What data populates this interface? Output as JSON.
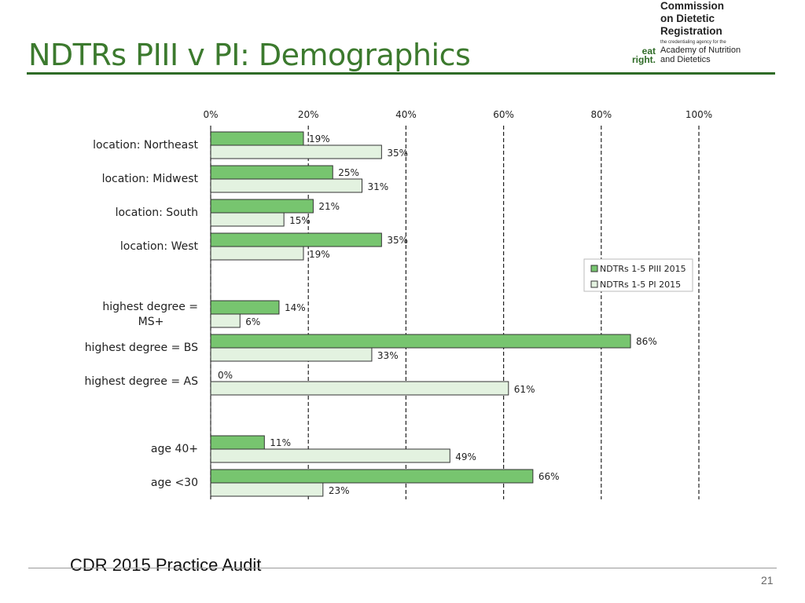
{
  "slide": {
    "title": "NDTRs PIII v PI: Demographics",
    "footer": "CDR 2015 Practice Audit",
    "page_number": "21"
  },
  "logo": {
    "name_lines": [
      "Commission",
      "on Dietetic",
      "Registration"
    ],
    "tagline": "the credentialing agency for the",
    "academy_lines": [
      "Academy of Nutrition",
      "and Dietetics"
    ],
    "eat_right_lines": [
      "eat",
      "right."
    ]
  },
  "colors": {
    "title": "#3c7a2e",
    "series_piii": "#77c56f",
    "series_pi": "#e3f2e0",
    "bar_border": "#333333"
  },
  "chart_data": {
    "type": "bar",
    "orientation": "horizontal",
    "xlim": [
      0,
      100
    ],
    "x_ticks": [
      "0%",
      "20%",
      "40%",
      "60%",
      "80%",
      "100%"
    ],
    "legend_position": "right",
    "categories": [
      "location: Northeast",
      "location: Midwest",
      "location: South",
      "location: West",
      "",
      "highest degree = MS+",
      "highest degree = BS",
      "highest degree = AS",
      "",
      "age 40+",
      "age <30"
    ],
    "category_label_lines": [
      [
        "location: Northeast"
      ],
      [
        "location: Midwest"
      ],
      [
        "location: South"
      ],
      [
        "location: West"
      ],
      [],
      [
        "highest degree =",
        "MS+"
      ],
      [
        "highest degree = BS"
      ],
      [
        "highest degree = AS"
      ],
      [],
      [
        "age 40+"
      ],
      [
        "age <30"
      ]
    ],
    "series": [
      {
        "name": "NDTRs 1-5 PIII 2015",
        "values": [
          19,
          25,
          21,
          35,
          null,
          14,
          86,
          0,
          null,
          11,
          66
        ],
        "labels": [
          "19%",
          "25%",
          "21%",
          "35%",
          null,
          "14%",
          "86%",
          "0%",
          null,
          "11%",
          "66%"
        ]
      },
      {
        "name": "NDTRs 1-5 PI 2015",
        "values": [
          35,
          31,
          15,
          19,
          null,
          6,
          33,
          61,
          null,
          49,
          23
        ],
        "labels": [
          "35%",
          "31%",
          "15%",
          "19%",
          null,
          "6%",
          "33%",
          "61%",
          null,
          "49%",
          "23%"
        ]
      }
    ]
  }
}
